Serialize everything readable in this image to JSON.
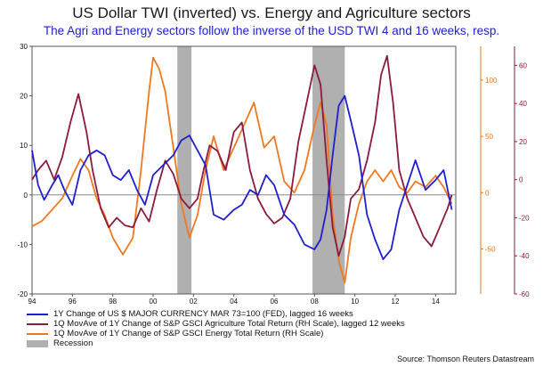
{
  "title": "US Dollar TWI (inverted) vs. Energy and Agriculture sectors",
  "subtitle": "The Agri and Energy sectors follow the inverse of the USD TWI 4 and 16 weeks, resp.",
  "source": "Source: Thomson Reuters Datastream",
  "chart_data": {
    "type": "line",
    "title": "US Dollar TWI (inverted) vs. Energy and Agriculture sectors",
    "x_ticks": [
      "94",
      "96",
      "98",
      "00",
      "02",
      "04",
      "06",
      "08",
      "10",
      "12",
      "14"
    ],
    "xlim": [
      1994,
      2015
    ],
    "left_axis": {
      "inverted": true,
      "ylim": [
        30,
        -20
      ],
      "ticks": [
        -20,
        -10,
        0,
        10,
        20,
        30
      ]
    },
    "right_axis_1": {
      "color": "#e8741e",
      "ylim": [
        -90,
        130
      ],
      "ticks": [
        -50,
        0,
        50,
        100
      ]
    },
    "right_axis_2": {
      "color": "#8b1a3c",
      "ylim": [
        -60,
        70
      ],
      "ticks": [
        -60,
        -40,
        -20,
        0,
        20,
        40,
        60
      ]
    },
    "recessions": [
      [
        2001.2,
        2001.9
      ],
      [
        2007.9,
        2009.5
      ]
    ],
    "series": [
      {
        "name": "1Y Change of US $ MAJOR CURRENCY MAR 73=100 (FED), lagged 16 weeks",
        "axis": "left",
        "color": "#1f1fd0",
        "x": [
          1994,
          1994.3,
          1994.6,
          1995.0,
          1995.3,
          1995.6,
          1996.0,
          1996.4,
          1996.8,
          1997.2,
          1997.6,
          1998.0,
          1998.4,
          1998.8,
          1999.2,
          1999.6,
          2000.0,
          2000.5,
          2001.0,
          2001.4,
          2001.8,
          2002.2,
          2002.6,
          2003.0,
          2003.5,
          2004.0,
          2004.4,
          2004.8,
          2005.2,
          2005.6,
          2006.0,
          2006.5,
          2007.0,
          2007.5,
          2008.0,
          2008.3,
          2008.6,
          2008.9,
          2009.2,
          2009.5,
          2009.8,
          2010.2,
          2010.6,
          2011.0,
          2011.4,
          2011.8,
          2012.2,
          2012.6,
          2013.0,
          2013.5,
          2014.0,
          2014.4,
          2014.8
        ],
        "y": [
          9,
          2,
          -1,
          2,
          4,
          1,
          -2,
          5,
          8,
          9,
          8,
          4,
          3,
          5,
          1,
          -2,
          4,
          6,
          8,
          11,
          12,
          9,
          6,
          -4,
          -5,
          -3,
          -2,
          1,
          0,
          4,
          2,
          -4,
          -6,
          -10,
          -11,
          -9,
          -3,
          8,
          18,
          20,
          15,
          8,
          -4,
          -9,
          -13,
          -11,
          -3,
          2,
          7,
          1,
          3,
          5,
          -3
        ]
      },
      {
        "name": "1Q MovAve of 1Y Change of S&P GSCI Agriculture Total Return (RH Scale), lagged 12 weeks",
        "axis": "right_axis_2",
        "color": "#8b1a3c",
        "x": [
          1994,
          1994.3,
          1994.7,
          1995.1,
          1995.5,
          1995.9,
          1996.3,
          1996.7,
          1997.0,
          1997.4,
          1997.8,
          1998.2,
          1998.6,
          1999.0,
          1999.4,
          1999.8,
          2000.2,
          2000.6,
          2001.0,
          2001.4,
          2001.8,
          2002.2,
          2002.5,
          2002.8,
          2003.2,
          2003.6,
          2004.0,
          2004.4,
          2004.8,
          2005.2,
          2005.6,
          2006.0,
          2006.4,
          2006.8,
          2007.2,
          2007.6,
          2008.0,
          2008.3,
          2008.6,
          2008.9,
          2009.2,
          2009.5,
          2009.8,
          2010.2,
          2010.6,
          2011.0,
          2011.3,
          2011.6,
          2011.9,
          2012.2,
          2012.6,
          2013.0,
          2013.4,
          2013.8,
          2014.2,
          2014.6,
          2014.8
        ],
        "y": [
          0,
          5,
          10,
          0,
          12,
          30,
          45,
          25,
          5,
          -15,
          -25,
          -20,
          -24,
          -25,
          -15,
          -22,
          -5,
          10,
          3,
          -10,
          -15,
          -10,
          5,
          18,
          15,
          5,
          25,
          30,
          5,
          -10,
          -18,
          -23,
          -20,
          -10,
          20,
          40,
          60,
          50,
          10,
          -25,
          -40,
          -30,
          -10,
          -5,
          10,
          30,
          55,
          65,
          40,
          5,
          -10,
          -20,
          -30,
          -35,
          -25,
          -15,
          -8
        ]
      },
      {
        "name": "1Q MovAve of 1Y Change of S&P GSCI Energy Total Return (RH Scale)",
        "axis": "right_axis_1",
        "color": "#f07820",
        "x": [
          1994,
          1994.5,
          1995.0,
          1995.5,
          1996.0,
          1996.4,
          1996.8,
          1997.2,
          1997.6,
          1998.0,
          1998.5,
          1999.0,
          1999.4,
          1999.8,
          2000.0,
          2000.3,
          2000.6,
          2001.0,
          2001.4,
          2001.8,
          2002.2,
          2002.6,
          2003.0,
          2003.5,
          2004.0,
          2004.5,
          2005.0,
          2005.5,
          2006.0,
          2006.5,
          2007.0,
          2007.5,
          2008.0,
          2008.3,
          2008.6,
          2008.9,
          2009.2,
          2009.5,
          2009.8,
          2010.2,
          2010.6,
          2011.0,
          2011.4,
          2011.8,
          2012.2,
          2012.6,
          2013.0,
          2013.5,
          2014.0,
          2014.4,
          2014.8
        ],
        "y": [
          -30,
          -25,
          -15,
          -5,
          15,
          30,
          20,
          -5,
          -20,
          -40,
          -55,
          -40,
          20,
          90,
          120,
          110,
          90,
          40,
          -10,
          -40,
          -20,
          20,
          50,
          20,
          40,
          60,
          80,
          40,
          50,
          10,
          0,
          20,
          60,
          80,
          60,
          -20,
          -60,
          -80,
          -40,
          -10,
          10,
          20,
          10,
          20,
          5,
          0,
          10,
          5,
          15,
          5,
          -10
        ]
      }
    ],
    "legend": [
      {
        "label": "1Y Change of US $ MAJOR CURRENCY MAR 73=100 (FED), lagged 16 weeks",
        "color": "#1f1fd0",
        "kind": "line"
      },
      {
        "label": "1Q MovAve of 1Y Change of S&P GSCI Agriculture Total Return (RH Scale), lagged 12 weeks",
        "color": "#8b1a3c",
        "kind": "line"
      },
      {
        "label": "1Q MovAve of 1Y Change of S&P GSCI Energy Total Return (RH Scale)",
        "color": "#f07820",
        "kind": "line"
      },
      {
        "label": "Recession",
        "color": "#b0b0b0",
        "kind": "box"
      }
    ],
    "legend_position": "bottom-left",
    "grid": false
  }
}
